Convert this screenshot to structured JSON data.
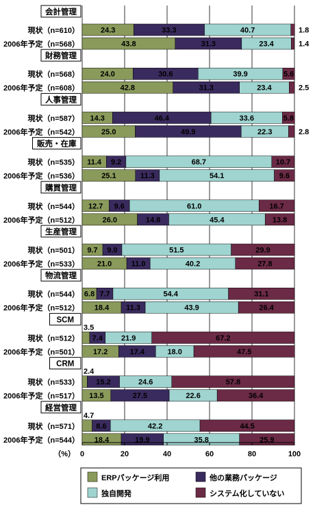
{
  "chart_data": {
    "type": "bar",
    "orientation": "horizontal",
    "stacked": true,
    "xlim": [
      0,
      100
    ],
    "x_ticks": [
      0,
      20,
      40,
      60,
      80,
      100
    ],
    "xlabel": "（%）",
    "series": [
      {
        "name": "ERPパッケージ利用",
        "color": "#8a9a5b"
      },
      {
        "name": "他の業務パッケージ",
        "color": "#3a2b5e"
      },
      {
        "name": "独自開発",
        "color": "#9fd4d0"
      },
      {
        "name": "システム化していない",
        "color": "#6b2a45"
      }
    ],
    "groups": [
      {
        "name": "会計管理",
        "rows": [
          {
            "label": "現状（n=610）",
            "values": [
              24.3,
              33.3,
              40.7,
              1.8
            ]
          },
          {
            "label": "2006年予定（n=568）",
            "values": [
              43.8,
              31.3,
              23.4,
              1.4
            ]
          }
        ]
      },
      {
        "name": "財務管理",
        "rows": [
          {
            "label": "現状（n=568）",
            "values": [
              24.0,
              30.6,
              39.9,
              5.6
            ]
          },
          {
            "label": "2006年予定（n=608）",
            "values": [
              42.8,
              31.3,
              23.4,
              2.5
            ]
          }
        ]
      },
      {
        "name": "人事管理",
        "rows": [
          {
            "label": "現状（n=587）",
            "values": [
              14.3,
              46.4,
              33.6,
              5.8
            ]
          },
          {
            "label": "2006年予定（n=542）",
            "values": [
              25.0,
              49.9,
              22.3,
              2.8
            ]
          }
        ]
      },
      {
        "name": "販売・在庫",
        "rows": [
          {
            "label": "現状（n=535）",
            "values": [
              11.4,
              9.2,
              68.7,
              10.7
            ]
          },
          {
            "label": "2006年予定（n=536）",
            "values": [
              25.1,
              11.3,
              54.1,
              9.6
            ]
          }
        ]
      },
      {
        "name": "購買管理",
        "rows": [
          {
            "label": "現状（n=544）",
            "values": [
              12.7,
              9.6,
              61.0,
              16.7
            ]
          },
          {
            "label": "2006年予定（n=512）",
            "values": [
              26.0,
              14.8,
              45.4,
              13.8
            ]
          }
        ]
      },
      {
        "name": "生産管理",
        "rows": [
          {
            "label": "現状（n=501）",
            "values": [
              9.7,
              9.0,
              51.5,
              29.9
            ]
          },
          {
            "label": "2006年予定（n=533）",
            "values": [
              21.0,
              11.0,
              40.2,
              27.8
            ]
          }
        ]
      },
      {
        "name": "物流管理",
        "rows": [
          {
            "label": "現状（n=544）",
            "values": [
              6.8,
              7.7,
              54.4,
              31.1
            ]
          },
          {
            "label": "2006年予定（n=512）",
            "values": [
              18.4,
              11.3,
              43.9,
              26.4
            ]
          }
        ]
      },
      {
        "name": "SCM",
        "rows": [
          {
            "label": "現状（n=512）",
            "values": [
              3.5,
              7.4,
              21.9,
              67.2
            ]
          },
          {
            "label": "2006年予定（n=501）",
            "values": [
              17.2,
              17.4,
              18.0,
              47.5
            ]
          }
        ]
      },
      {
        "name": "CRM",
        "rows": [
          {
            "label": "現状（n=533）",
            "values": [
              2.4,
              15.2,
              24.6,
              57.8
            ]
          },
          {
            "label": "2006年予定（n=517）",
            "values": [
              13.5,
              27.5,
              22.6,
              36.4
            ]
          }
        ]
      },
      {
        "name": "経営管理",
        "rows": [
          {
            "label": "現状（n=571）",
            "values": [
              4.7,
              8.6,
              42.2,
              44.5
            ]
          },
          {
            "label": "2006年予定（n=544）",
            "values": [
              18.4,
              19.9,
              35.8,
              25.9
            ]
          }
        ]
      }
    ]
  }
}
